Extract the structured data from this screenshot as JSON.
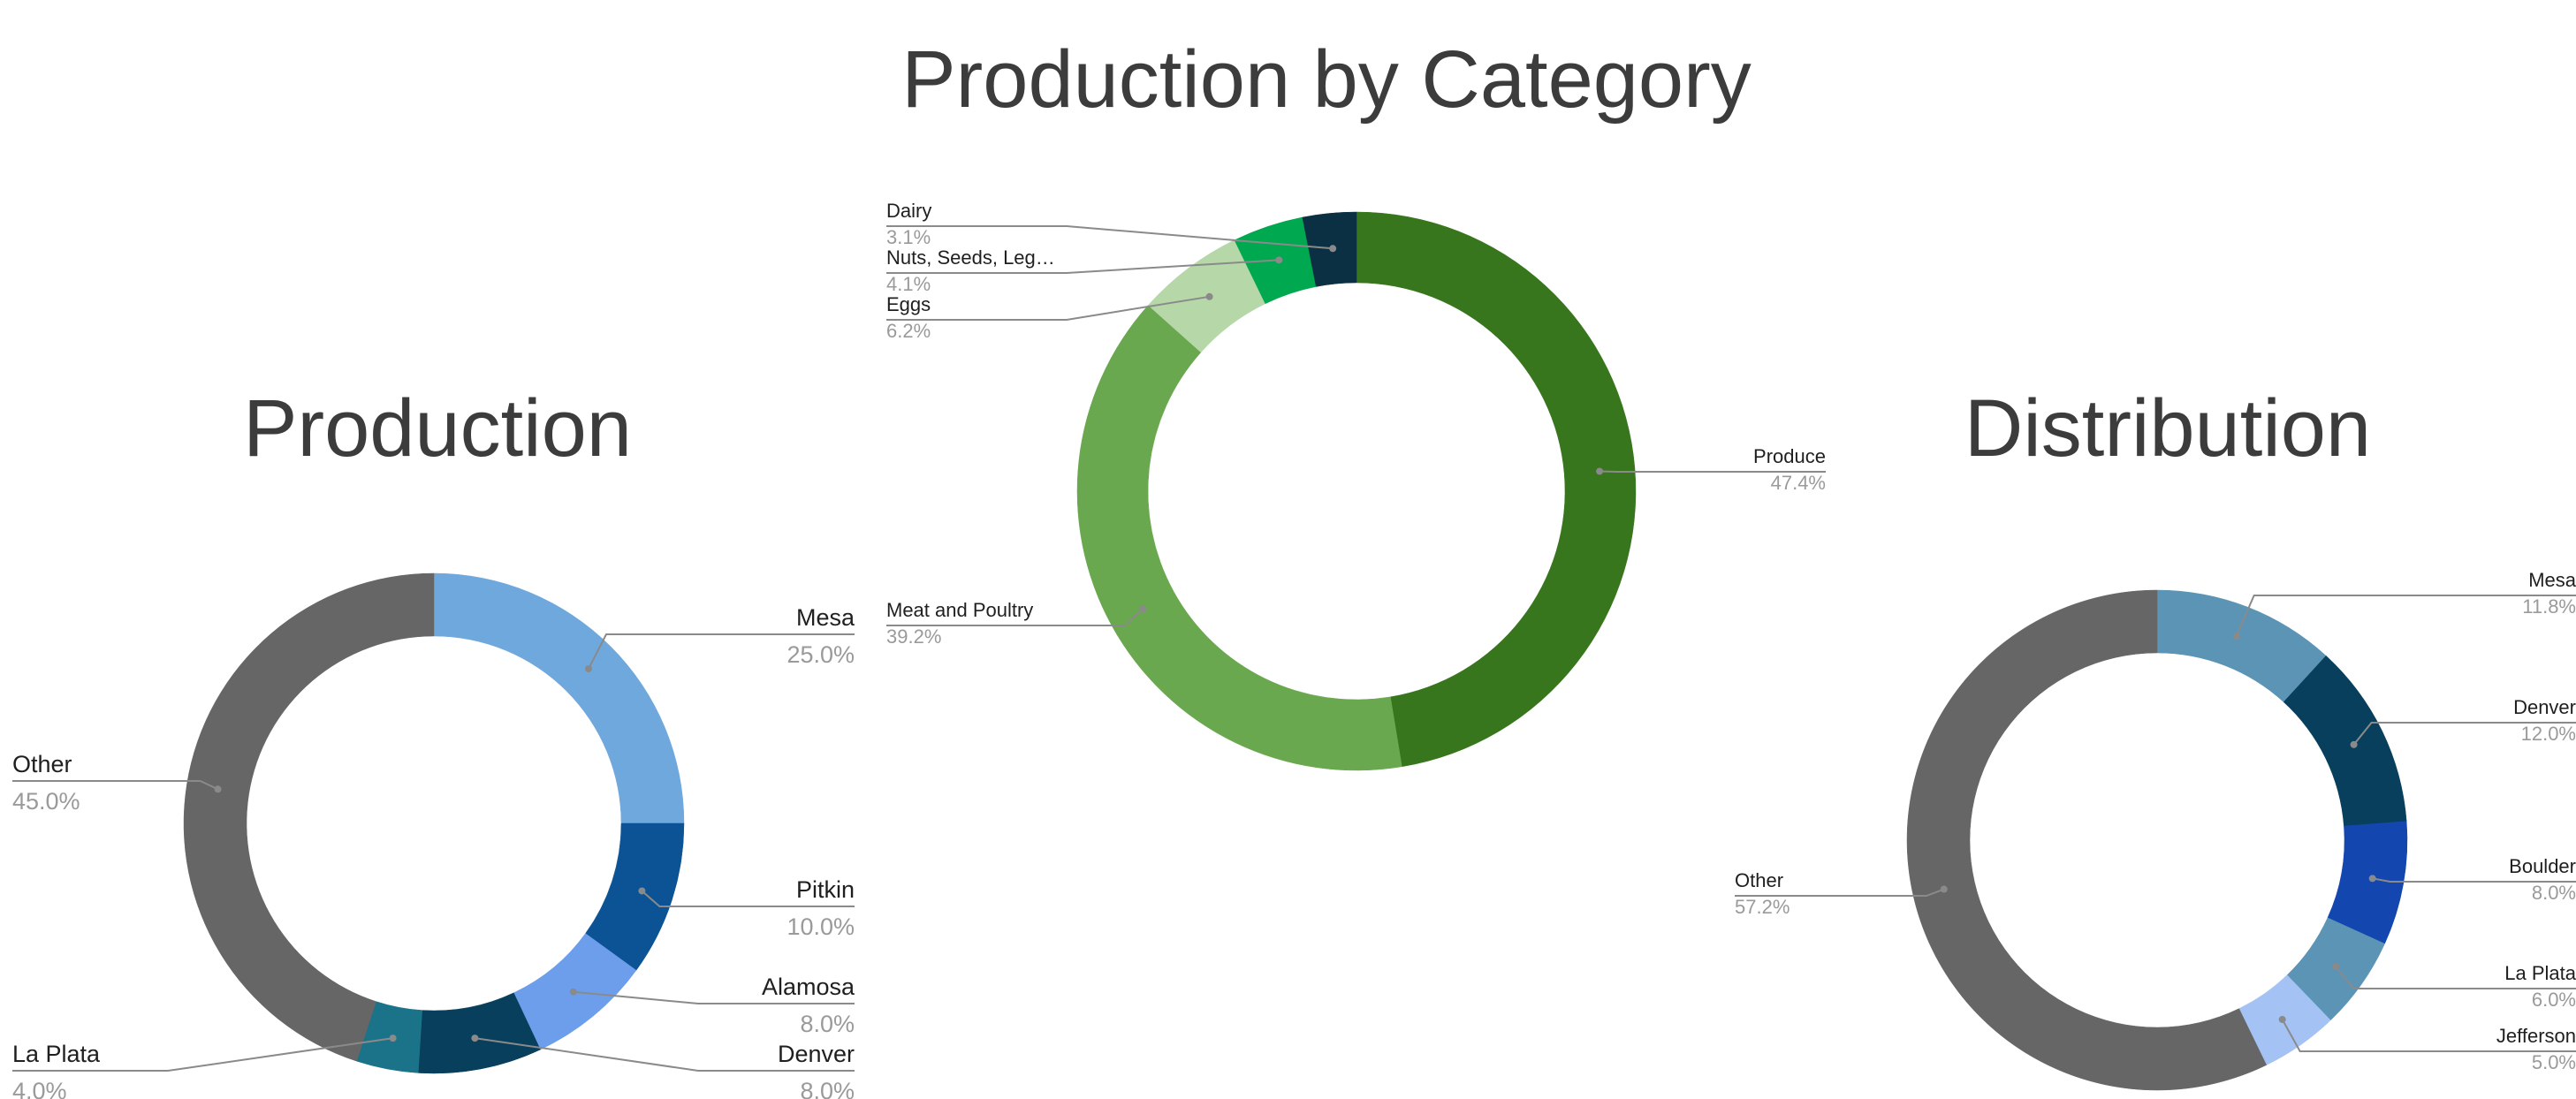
{
  "titles": {
    "main": "Production by Category",
    "production": "Production",
    "distribution": "Distribution"
  },
  "colors": {
    "leader": "#8a8a8a",
    "label": "#1f1f1f",
    "percent": "#9a9a9a"
  },
  "chart_data": [
    {
      "type": "pie",
      "title": "Production by Category",
      "donut": true,
      "slices": [
        {
          "label": "Produce",
          "percent_label": "47.4%",
          "value": 47.4,
          "color": "#38761d"
        },
        {
          "label": "Meat and Poultry",
          "percent_label": "39.2%",
          "value": 39.2,
          "color": "#6aa84f"
        },
        {
          "label": "Eggs",
          "percent_label": "6.2%",
          "value": 6.2,
          "color": "#b6d7a8"
        },
        {
          "label": "Nuts, Seeds, Leg…",
          "percent_label": "4.1%",
          "value": 4.1,
          "color": "#00a94f"
        },
        {
          "label": "Dairy",
          "percent_label": "3.1%",
          "value": 3.1,
          "color": "#0c3043"
        }
      ]
    },
    {
      "type": "pie",
      "title": "Production",
      "donut": true,
      "slices": [
        {
          "label": "Mesa",
          "percent_label": "25.0%",
          "value": 25.0,
          "color": "#6fa8dc"
        },
        {
          "label": "Pitkin",
          "percent_label": "10.0%",
          "value": 10.0,
          "color": "#0b5394"
        },
        {
          "label": "Alamosa",
          "percent_label": "8.0%",
          "value": 8.0,
          "color": "#6d9eeb"
        },
        {
          "label": "Denver",
          "percent_label": "8.0%",
          "value": 8.0,
          "color": "#073f5c"
        },
        {
          "label": "La Plata",
          "percent_label": "4.0%",
          "value": 4.0,
          "color": "#1b7389"
        },
        {
          "label": "Other",
          "percent_label": "45.0%",
          "value": 45.0,
          "color": "#666666"
        }
      ]
    },
    {
      "type": "pie",
      "title": "Distribution",
      "donut": true,
      "slices": [
        {
          "label": "Mesa",
          "percent_label": "11.8%",
          "value": 11.8,
          "color": "#5b94b5"
        },
        {
          "label": "Denver",
          "percent_label": "12.0%",
          "value": 12.0,
          "color": "#073f5c"
        },
        {
          "label": "Boulder",
          "percent_label": "8.0%",
          "value": 8.0,
          "color": "#1446b0"
        },
        {
          "label": "La Plata",
          "percent_label": "6.0%",
          "value": 6.0,
          "color": "#5b94b5"
        },
        {
          "label": "Jefferson",
          "percent_label": "5.0%",
          "value": 5.0,
          "color": "#a4c2f4"
        },
        {
          "label": "Other",
          "percent_label": "57.2%",
          "value": 57.2,
          "color": "#666666"
        }
      ]
    }
  ]
}
